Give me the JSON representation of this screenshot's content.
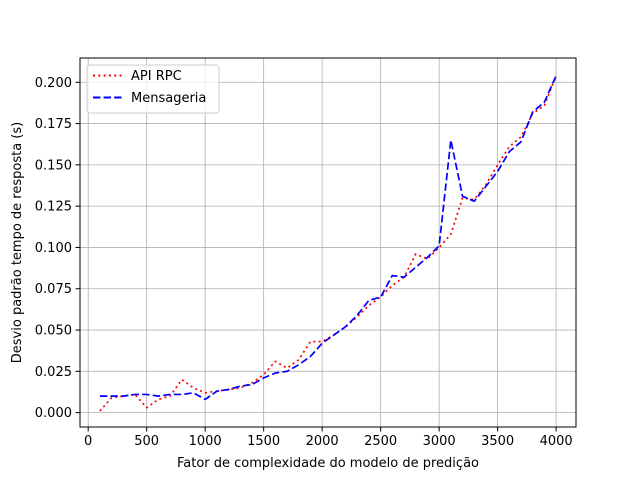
{
  "chart_data": {
    "type": "line",
    "title": "",
    "xlabel": "Fator de complexidade do modelo de predição",
    "ylabel": "Desvio padrão tempo de resposta (s)",
    "xlim": [
      -70,
      4170
    ],
    "ylim": [
      -0.0087,
      0.2147
    ],
    "x_ticks": [
      0,
      500,
      1000,
      1500,
      2000,
      2500,
      3000,
      3500,
      4000
    ],
    "y_ticks": [
      0.0,
      0.025,
      0.05,
      0.075,
      0.1,
      0.125,
      0.15,
      0.175,
      0.2
    ],
    "y_tick_labels": [
      "0.000",
      "0.025",
      "0.050",
      "0.075",
      "0.100",
      "0.125",
      "0.150",
      "0.175",
      "0.200"
    ],
    "grid": true,
    "legend_position": "top-left",
    "series": [
      {
        "name": "API RPC",
        "color": "#ff0000",
        "dash": "dotted",
        "x": [
          100,
          200,
          300,
          400,
          500,
          600,
          700,
          800,
          900,
          1000,
          1100,
          1200,
          1300,
          1400,
          1500,
          1600,
          1700,
          1800,
          1900,
          2000,
          2100,
          2200,
          2300,
          2400,
          2500,
          2600,
          2700,
          2800,
          2900,
          3000,
          3100,
          3200,
          3300,
          3400,
          3500,
          3600,
          3700,
          3800,
          3900,
          4000
        ],
        "values": [
          0.001,
          0.009,
          0.01,
          0.011,
          0.003,
          0.008,
          0.01,
          0.02,
          0.015,
          0.012,
          0.013,
          0.014,
          0.015,
          0.018,
          0.023,
          0.031,
          0.027,
          0.032,
          0.043,
          0.043,
          0.047,
          0.052,
          0.058,
          0.065,
          0.07,
          0.077,
          0.082,
          0.096,
          0.093,
          0.1,
          0.108,
          0.13,
          0.129,
          0.138,
          0.15,
          0.161,
          0.167,
          0.181,
          0.186,
          0.204
        ]
      },
      {
        "name": "Mensageria",
        "color": "#0000ff",
        "dash": "dashed",
        "x": [
          100,
          200,
          300,
          400,
          500,
          600,
          700,
          800,
          900,
          1000,
          1100,
          1200,
          1300,
          1400,
          1500,
          1600,
          1700,
          1800,
          1900,
          2000,
          2100,
          2200,
          2300,
          2400,
          2500,
          2600,
          2700,
          2800,
          2900,
          3000,
          3100,
          3200,
          3300,
          3400,
          3500,
          3600,
          3700,
          3800,
          3900,
          4000
        ],
        "values": [
          0.01,
          0.01,
          0.01,
          0.011,
          0.011,
          0.01,
          0.011,
          0.011,
          0.012,
          0.008,
          0.013,
          0.014,
          0.016,
          0.017,
          0.021,
          0.024,
          0.025,
          0.029,
          0.034,
          0.042,
          0.047,
          0.052,
          0.059,
          0.068,
          0.07,
          0.083,
          0.082,
          0.088,
          0.094,
          0.101,
          0.165,
          0.131,
          0.128,
          0.137,
          0.146,
          0.158,
          0.164,
          0.182,
          0.188,
          0.204
        ]
      }
    ]
  }
}
